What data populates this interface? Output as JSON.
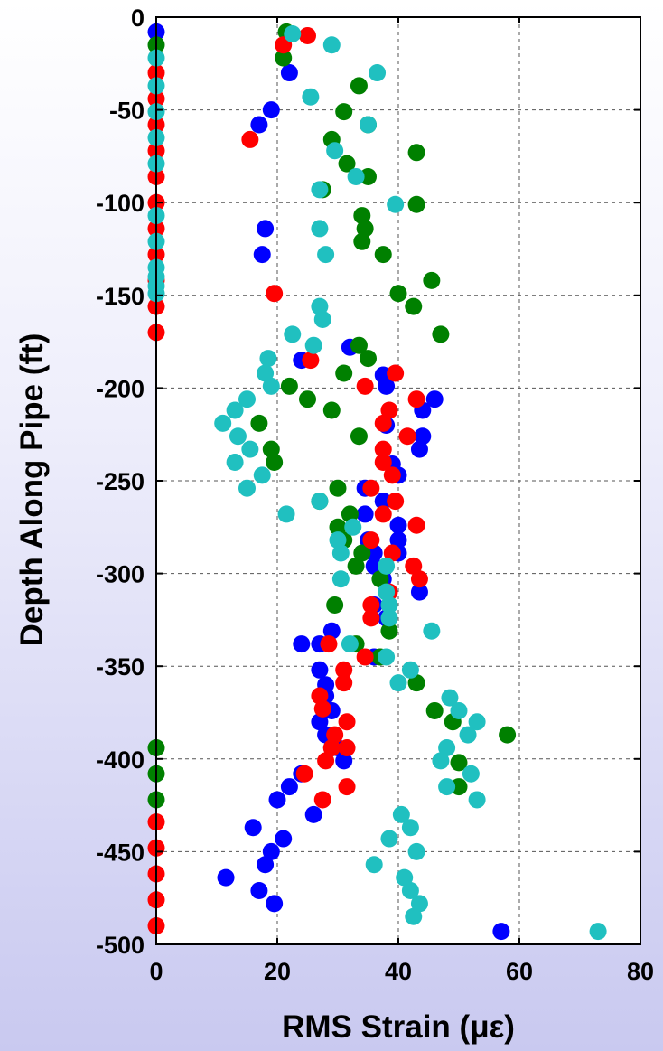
{
  "chart_data": {
    "type": "scatter",
    "title": "",
    "xlabel": "RMS Strain (με)",
    "ylabel": "Depth Along Pipe (ft)",
    "xlim": [
      0,
      80
    ],
    "ylim": [
      -500,
      0
    ],
    "xticks": [
      "0",
      "20",
      "40",
      "60",
      "80"
    ],
    "yticks": [
      "0",
      "-50",
      "-100",
      "-150",
      "-200",
      "-250",
      "-300",
      "-350",
      "-400",
      "-450",
      "-500"
    ],
    "grid": true,
    "legend": "none",
    "series": [
      {
        "color": "#0000ff",
        "points": [
          [
            0,
            -8
          ],
          [
            22,
            -30
          ],
          [
            19,
            -50
          ],
          [
            17,
            -58
          ],
          [
            18,
            -114
          ],
          [
            17.5,
            -128
          ],
          [
            32,
            -178
          ],
          [
            24,
            -185
          ],
          [
            37.5,
            -193
          ],
          [
            38,
            -199
          ],
          [
            46,
            -206
          ],
          [
            44,
            -212
          ],
          [
            38,
            -220
          ],
          [
            44,
            -226
          ],
          [
            43.5,
            -233
          ],
          [
            39,
            -241
          ],
          [
            40,
            -247
          ],
          [
            34.5,
            -254
          ],
          [
            37.5,
            -261
          ],
          [
            34.5,
            -268
          ],
          [
            40,
            -274
          ],
          [
            40,
            -282
          ],
          [
            35,
            -282
          ],
          [
            36,
            -289
          ],
          [
            40,
            -289
          ],
          [
            36,
            -296
          ],
          [
            37.5,
            -303
          ],
          [
            43.5,
            -310
          ],
          [
            36,
            -317
          ],
          [
            38,
            -324
          ],
          [
            29,
            -331
          ],
          [
            27,
            -338
          ],
          [
            24,
            -338
          ],
          [
            36,
            -345
          ],
          [
            27,
            -352
          ],
          [
            28,
            -360
          ],
          [
            28,
            -366
          ],
          [
            29,
            -374
          ],
          [
            27,
            -380
          ],
          [
            28,
            -387
          ],
          [
            30,
            -394
          ],
          [
            29,
            -394
          ],
          [
            31,
            -401
          ],
          [
            24,
            -408
          ],
          [
            20,
            -422
          ],
          [
            22,
            -415
          ],
          [
            26,
            -430
          ],
          [
            16,
            -437
          ],
          [
            21,
            -443
          ],
          [
            19,
            -450
          ],
          [
            18,
            -457
          ],
          [
            11.5,
            -464
          ],
          [
            17,
            -471
          ],
          [
            19.5,
            -478
          ],
          [
            57,
            -493
          ]
        ]
      },
      {
        "color": "#008000",
        "points": [
          [
            0,
            -15
          ],
          [
            21.5,
            -8
          ],
          [
            21,
            -22
          ],
          [
            33.5,
            -37
          ],
          [
            31,
            -51
          ],
          [
            35,
            -58
          ],
          [
            29,
            -66
          ],
          [
            43,
            -73
          ],
          [
            31.5,
            -79
          ],
          [
            35,
            -86
          ],
          [
            27.5,
            -93
          ],
          [
            43,
            -101
          ],
          [
            34,
            -107
          ],
          [
            34.5,
            -114
          ],
          [
            34,
            -121
          ],
          [
            37.5,
            -128
          ],
          [
            45.5,
            -142
          ],
          [
            40,
            -149
          ],
          [
            42.5,
            -156
          ],
          [
            47,
            -171
          ],
          [
            33.5,
            -177
          ],
          [
            35,
            -184
          ],
          [
            31,
            -192
          ],
          [
            22,
            -199
          ],
          [
            25,
            -206
          ],
          [
            17,
            -219
          ],
          [
            19,
            -233
          ],
          [
            29,
            -212
          ],
          [
            33.5,
            -226
          ],
          [
            19.5,
            -240
          ],
          [
            30,
            -254
          ],
          [
            27,
            -261
          ],
          [
            30,
            -275
          ],
          [
            32,
            -268
          ],
          [
            31,
            -282
          ],
          [
            34,
            -289
          ],
          [
            33,
            -296
          ],
          [
            37,
            -303
          ],
          [
            38,
            -310
          ],
          [
            29.5,
            -317
          ],
          [
            38.5,
            -331
          ],
          [
            33,
            -338
          ],
          [
            37,
            -345
          ],
          [
            43,
            -359
          ],
          [
            46,
            -374
          ],
          [
            49,
            -380
          ],
          [
            58,
            -387
          ],
          [
            50,
            -402
          ],
          [
            50,
            -415
          ],
          [
            0,
            -394
          ],
          [
            0,
            -408
          ],
          [
            0,
            -422
          ]
        ]
      },
      {
        "color": "#ff0000",
        "points": [
          [
            0,
            -30
          ],
          [
            0,
            -44
          ],
          [
            0,
            -58
          ],
          [
            0,
            -72
          ],
          [
            0,
            -86
          ],
          [
            0,
            -100
          ],
          [
            0,
            -114
          ],
          [
            0,
            -128
          ],
          [
            0,
            -142
          ],
          [
            0,
            -156
          ],
          [
            0,
            -170
          ],
          [
            0,
            -434
          ],
          [
            0,
            -448
          ],
          [
            0,
            -462
          ],
          [
            0,
            -476
          ],
          [
            0,
            -490
          ],
          [
            25,
            -10
          ],
          [
            21,
            -15
          ],
          [
            15.5,
            -66
          ],
          [
            19.5,
            -149
          ],
          [
            25.5,
            -185
          ],
          [
            34.5,
            -199
          ],
          [
            39.5,
            -192
          ],
          [
            43,
            -206
          ],
          [
            38.5,
            -212
          ],
          [
            37.5,
            -219
          ],
          [
            41.5,
            -226
          ],
          [
            37.5,
            -233
          ],
          [
            37.5,
            -240
          ],
          [
            39,
            -247
          ],
          [
            35.5,
            -254
          ],
          [
            39.5,
            -261
          ],
          [
            37.5,
            -268
          ],
          [
            43,
            -274
          ],
          [
            35.5,
            -282
          ],
          [
            39,
            -289
          ],
          [
            42.5,
            -296
          ],
          [
            43.5,
            -303
          ],
          [
            38.5,
            -310
          ],
          [
            35.5,
            -317
          ],
          [
            35.5,
            -324
          ],
          [
            28.5,
            -338
          ],
          [
            34.5,
            -345
          ],
          [
            31,
            -352
          ],
          [
            31,
            -359
          ],
          [
            27,
            -366
          ],
          [
            27.5,
            -373
          ],
          [
            31.5,
            -380
          ],
          [
            29.5,
            -387
          ],
          [
            29,
            -394
          ],
          [
            31.5,
            -394
          ],
          [
            28,
            -401
          ],
          [
            24.5,
            -408
          ],
          [
            31.5,
            -415
          ],
          [
            27.5,
            -422
          ]
        ]
      },
      {
        "color": "#20c0c0",
        "points": [
          [
            0,
            -22
          ],
          [
            0,
            -37
          ],
          [
            0,
            -51
          ],
          [
            0,
            -65
          ],
          [
            0,
            -79
          ],
          [
            0,
            -107
          ],
          [
            0,
            -121
          ],
          [
            0,
            -135
          ],
          [
            0,
            -140
          ],
          [
            0,
            -145
          ],
          [
            0,
            -149
          ],
          [
            22.5,
            -9
          ],
          [
            29,
            -15
          ],
          [
            36.5,
            -30
          ],
          [
            25.5,
            -43
          ],
          [
            35,
            -58
          ],
          [
            29.5,
            -72
          ],
          [
            33,
            -86
          ],
          [
            27,
            -93
          ],
          [
            39.5,
            -101
          ],
          [
            27,
            -114
          ],
          [
            28,
            -128
          ],
          [
            27,
            -156
          ],
          [
            27.5,
            -163
          ],
          [
            22.5,
            -171
          ],
          [
            26,
            -177
          ],
          [
            18.5,
            -184
          ],
          [
            18,
            -192
          ],
          [
            19,
            -199
          ],
          [
            15,
            -206
          ],
          [
            13,
            -212
          ],
          [
            11,
            -219
          ],
          [
            13.5,
            -226
          ],
          [
            15.5,
            -233
          ],
          [
            13,
            -240
          ],
          [
            17.5,
            -247
          ],
          [
            15,
            -254
          ],
          [
            27,
            -261
          ],
          [
            21.5,
            -268
          ],
          [
            32.5,
            -275
          ],
          [
            30,
            -282
          ],
          [
            30.5,
            -289
          ],
          [
            38,
            -296
          ],
          [
            30.5,
            -303
          ],
          [
            38,
            -310
          ],
          [
            38.5,
            -317
          ],
          [
            38.5,
            -324
          ],
          [
            45.5,
            -331
          ],
          [
            32,
            -338
          ],
          [
            38,
            -345
          ],
          [
            40,
            -359
          ],
          [
            42,
            -352
          ],
          [
            48.5,
            -367
          ],
          [
            50,
            -374
          ],
          [
            53,
            -380
          ],
          [
            51.5,
            -387
          ],
          [
            48,
            -394
          ],
          [
            47,
            -401
          ],
          [
            52,
            -408
          ],
          [
            48,
            -415
          ],
          [
            53,
            -422
          ],
          [
            40.5,
            -430
          ],
          [
            42,
            -437
          ],
          [
            38.5,
            -443
          ],
          [
            43,
            -450
          ],
          [
            36,
            -457
          ],
          [
            41,
            -464
          ],
          [
            42,
            -471
          ],
          [
            43.5,
            -478
          ],
          [
            42.5,
            -485
          ],
          [
            73,
            -493
          ]
        ]
      }
    ]
  }
}
